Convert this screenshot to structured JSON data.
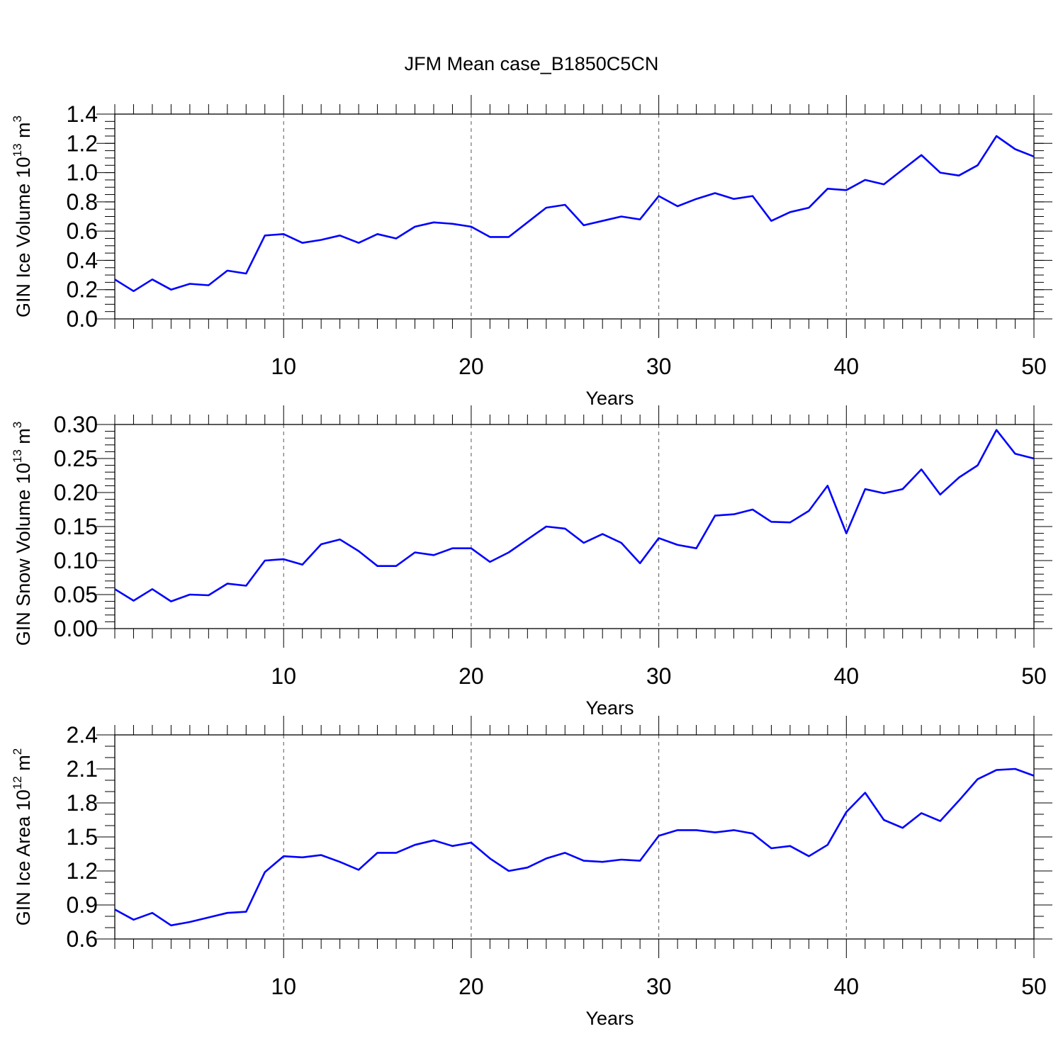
{
  "title": "JFM Mean case_B1850C5CN",
  "chart_data": [
    {
      "type": "line",
      "xlabel": "Years",
      "ylabel": {
        "base": "GIN Ice Volume 10",
        "exp": "13",
        "unit": " m",
        "unit_exp": "3"
      },
      "xlim": [
        1,
        50
      ],
      "ylim": [
        0,
        1.4
      ],
      "xticks": [
        10,
        20,
        30,
        40,
        50
      ],
      "yticks": [
        "0.0",
        "0.2",
        "0.4",
        "0.6",
        "0.8",
        "1.0",
        "1.2",
        "1.4"
      ],
      "y_minor_step": 0.05,
      "grid": "dashed vertical at x ticks",
      "color": "#0000ff",
      "x": [
        1,
        2,
        3,
        4,
        5,
        6,
        7,
        8,
        9,
        10,
        11,
        12,
        13,
        14,
        15,
        16,
        17,
        18,
        19,
        20,
        21,
        22,
        23,
        24,
        25,
        26,
        27,
        28,
        29,
        30,
        31,
        32,
        33,
        34,
        35,
        36,
        37,
        38,
        39,
        40,
        41,
        42,
        43,
        44,
        45,
        46,
        47,
        48,
        49,
        50
      ],
      "values": [
        0.27,
        0.19,
        0.27,
        0.2,
        0.24,
        0.23,
        0.33,
        0.31,
        0.57,
        0.58,
        0.52,
        0.54,
        0.57,
        0.52,
        0.58,
        0.55,
        0.63,
        0.66,
        0.65,
        0.63,
        0.56,
        0.56,
        0.66,
        0.76,
        0.78,
        0.64,
        0.67,
        0.7,
        0.68,
        0.84,
        0.77,
        0.82,
        0.86,
        0.82,
        0.84,
        0.67,
        0.73,
        0.76,
        0.89,
        0.88,
        0.95,
        0.92,
        1.02,
        1.12,
        1.0,
        0.98,
        1.05,
        1.25,
        1.16,
        1.11
      ]
    },
    {
      "type": "line",
      "xlabel": "Years",
      "ylabel": {
        "base": "GIN Snow Volume 10",
        "exp": "13",
        "unit": " m",
        "unit_exp": "3"
      },
      "xlim": [
        1,
        50
      ],
      "ylim": [
        0,
        0.3
      ],
      "xticks": [
        10,
        20,
        30,
        40,
        50
      ],
      "yticks": [
        "0.00",
        "0.05",
        "0.10",
        "0.15",
        "0.20",
        "0.25",
        "0.30"
      ],
      "y_minor_step": 0.01,
      "grid": "dashed vertical at x ticks",
      "color": "#0000ff",
      "x": [
        1,
        2,
        3,
        4,
        5,
        6,
        7,
        8,
        9,
        10,
        11,
        12,
        13,
        14,
        15,
        16,
        17,
        18,
        19,
        20,
        21,
        22,
        23,
        24,
        25,
        26,
        27,
        28,
        29,
        30,
        31,
        32,
        33,
        34,
        35,
        36,
        37,
        38,
        39,
        40,
        41,
        42,
        43,
        44,
        45,
        46,
        47,
        48,
        49,
        50
      ],
      "values": [
        0.058,
        0.041,
        0.058,
        0.04,
        0.05,
        0.049,
        0.066,
        0.063,
        0.1,
        0.102,
        0.094,
        0.124,
        0.131,
        0.114,
        0.092,
        0.092,
        0.112,
        0.108,
        0.118,
        0.118,
        0.098,
        0.112,
        0.131,
        0.15,
        0.147,
        0.126,
        0.139,
        0.126,
        0.096,
        0.133,
        0.123,
        0.118,
        0.166,
        0.168,
        0.175,
        0.157,
        0.156,
        0.173,
        0.21,
        0.14,
        0.205,
        0.199,
        0.205,
        0.234,
        0.197,
        0.222,
        0.24,
        0.292,
        0.257,
        0.25
      ]
    },
    {
      "type": "line",
      "xlabel": "Years",
      "ylabel": {
        "base": "GIN Ice Area 10",
        "exp": "12",
        "unit": " m",
        "unit_exp": "2"
      },
      "xlim": [
        1,
        50
      ],
      "ylim": [
        0.6,
        2.4
      ],
      "xticks": [
        10,
        20,
        30,
        40,
        50
      ],
      "yticks": [
        "0.6",
        "0.9",
        "1.2",
        "1.5",
        "1.8",
        "2.1",
        "2.4"
      ],
      "y_minor_step": 0.1,
      "grid": "dashed vertical at x ticks",
      "color": "#0000ff",
      "x": [
        1,
        2,
        3,
        4,
        5,
        6,
        7,
        8,
        9,
        10,
        11,
        12,
        13,
        14,
        15,
        16,
        17,
        18,
        19,
        20,
        21,
        22,
        23,
        24,
        25,
        26,
        27,
        28,
        29,
        30,
        31,
        32,
        33,
        34,
        35,
        36,
        37,
        38,
        39,
        40,
        41,
        42,
        43,
        44,
        45,
        46,
        47,
        48,
        49,
        50
      ],
      "values": [
        0.86,
        0.77,
        0.83,
        0.72,
        0.75,
        0.79,
        0.83,
        0.84,
        1.19,
        1.33,
        1.32,
        1.34,
        1.28,
        1.21,
        1.36,
        1.36,
        1.43,
        1.47,
        1.42,
        1.45,
        1.31,
        1.2,
        1.23,
        1.31,
        1.36,
        1.29,
        1.28,
        1.3,
        1.29,
        1.51,
        1.56,
        1.56,
        1.54,
        1.56,
        1.53,
        1.4,
        1.42,
        1.33,
        1.43,
        1.72,
        1.89,
        1.65,
        1.58,
        1.71,
        1.64,
        1.82,
        2.01,
        2.09,
        2.1,
        2.04
      ]
    }
  ]
}
